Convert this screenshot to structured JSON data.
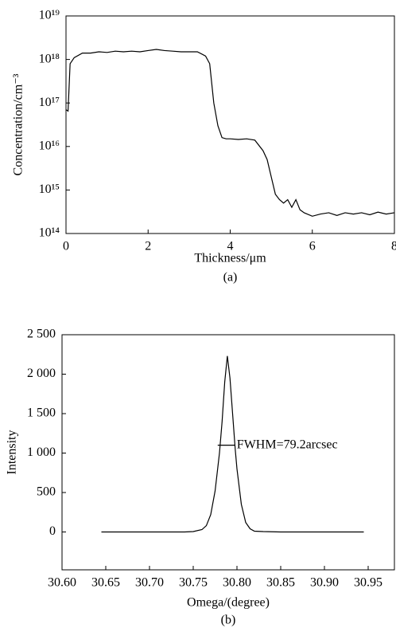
{
  "chart_data": [
    {
      "type": "line",
      "yscale": "log",
      "xlabel": "Thickness/μm",
      "ylabel": "Concentration/cm⁻³",
      "caption": "(a)",
      "x": [
        0,
        0.05,
        0.1,
        0.2,
        0.4,
        0.6,
        0.8,
        1.0,
        1.2,
        1.4,
        1.6,
        1.8,
        2.0,
        2.2,
        2.4,
        2.6,
        2.8,
        3.0,
        3.2,
        3.4,
        3.5,
        3.6,
        3.7,
        3.8,
        3.9,
        4.0,
        4.2,
        4.4,
        4.6,
        4.8,
        4.9,
        5.0,
        5.1,
        5.2,
        5.3,
        5.4,
        5.5,
        5.6,
        5.7,
        5.8,
        6.0,
        6.2,
        6.4,
        6.6,
        6.8,
        7.0,
        7.2,
        7.4,
        7.6,
        7.8,
        8.0
      ],
      "series": [
        {
          "color": "#000000",
          "values": [
            7e+16,
            6.5e+16,
            8e+17,
            1.1e+18,
            1.4e+18,
            1.4e+18,
            1.5e+18,
            1.45e+18,
            1.55e+18,
            1.5e+18,
            1.55e+18,
            1.5e+18,
            1.6e+18,
            1.7e+18,
            1.6e+18,
            1.55e+18,
            1.5e+18,
            1.5e+18,
            1.5e+18,
            1.2e+18,
            8e+17,
            1e+17,
            3e+16,
            1.6e+16,
            1.5e+16,
            1.5e+16,
            1.45e+16,
            1.5e+16,
            1.4e+16,
            8000000000000000.0,
            5000000000000000.0,
            2000000000000000.0,
            800000000000000.0,
            600000000000000.0,
            500000000000000.0,
            600000000000000.0,
            400000000000000.0,
            600000000000000.0,
            350000000000000.0,
            300000000000000.0,
            250000000000000.0,
            280000000000000.0,
            300000000000000.0,
            260000000000000.0,
            300000000000000.0,
            280000000000000.0,
            300000000000000.0,
            270000000000000.0,
            310000000000000.0,
            280000000000000.0,
            300000000000000.0
          ]
        }
      ],
      "xlim": [
        0,
        8
      ],
      "xticks": [
        0,
        2,
        4,
        6,
        8
      ],
      "ylim": [
        100000000000000.0,
        1e+19
      ],
      "yticks": [
        {
          "value": 100000000000000.0,
          "label": "10¹⁴"
        },
        {
          "value": 1000000000000000.0,
          "label": "10¹⁵"
        },
        {
          "value": 1e+16,
          "label": "10¹⁶"
        },
        {
          "value": 1e+17,
          "label": "10¹⁷"
        },
        {
          "value": 1e+18,
          "label": "10¹⁸"
        },
        {
          "value": 1e+19,
          "label": "10¹⁹"
        }
      ]
    },
    {
      "type": "line",
      "yscale": "linear",
      "xlabel": "Omega/(degree)",
      "ylabel": "Intensity",
      "caption": "(b)",
      "x": [
        30.645,
        30.7,
        30.74,
        30.75,
        30.76,
        30.765,
        30.77,
        30.775,
        30.78,
        30.783,
        30.786,
        30.789,
        30.792,
        30.795,
        30.798,
        30.8,
        30.805,
        30.81,
        30.815,
        30.82,
        30.83,
        30.85,
        30.9,
        30.945
      ],
      "series": [
        {
          "color": "#000000",
          "values": [
            0,
            0,
            0,
            5,
            30,
            80,
            220,
            520,
            1000,
            1400,
            1900,
            2230,
            1950,
            1500,
            1050,
            800,
            350,
            120,
            40,
            10,
            5,
            0,
            0,
            0
          ]
        }
      ],
      "annotation": {
        "text": "FWHM=79.2arcsec",
        "x": [
          30.778,
          30.798
        ],
        "y": 1100
      },
      "xlim": [
        30.6,
        30.98
      ],
      "xticks": [
        {
          "value": 30.6,
          "label": "30.60"
        },
        30.65,
        {
          "value": 30.7,
          "label": "30.70"
        },
        30.75,
        {
          "value": 30.8,
          "label": "30.80"
        },
        30.85,
        {
          "value": 30.9,
          "label": "30.90"
        },
        30.95
      ],
      "ylim": [
        -480,
        2500
      ],
      "yticks": [
        0,
        500,
        {
          "value": 1000,
          "label": "1 000"
        },
        {
          "value": 1500,
          "label": "1 500"
        },
        {
          "value": 2000,
          "label": "2 000"
        },
        {
          "value": 2500,
          "label": "2 500"
        }
      ]
    }
  ]
}
